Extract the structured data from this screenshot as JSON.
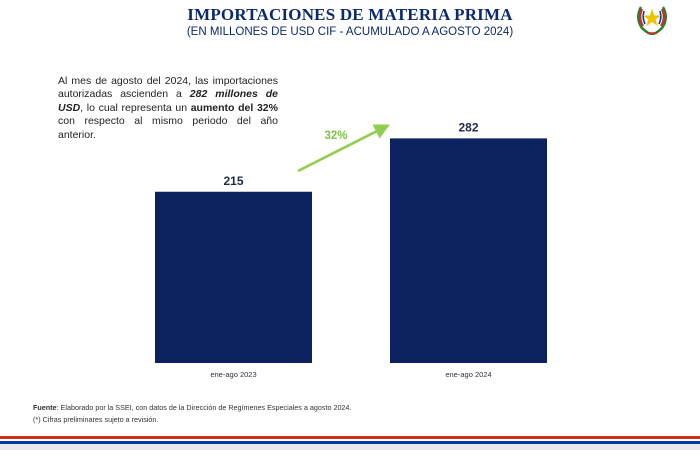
{
  "header": {
    "title": "IMPORTACIONES DE MATERIA PRIMA",
    "subtitle": "(EN MILLONES DE USD CIF - ACUMULADO A AGOSTO 2024)"
  },
  "note": {
    "part1": "Al mes de agosto del 2024, las importaciones autorizadas ascienden a ",
    "amount": "282 millones de USD",
    "part2": ", lo cual representa un ",
    "increase": "aumento del 32%",
    "part3": " con respecto al mismo periodo del año anterior."
  },
  "chart_data": {
    "type": "bar",
    "categories": [
      "ene-ago 2023",
      "ene-ago 2024"
    ],
    "values": [
      215,
      282
    ],
    "data_labels": [
      "215",
      "282"
    ],
    "growth_label": "32%",
    "ylim": [
      0,
      300
    ],
    "grid": false,
    "legend": "none",
    "colors": {
      "bar": "#0b2160",
      "arrow": "#8fce4e",
      "growth_text": "#7dc242"
    }
  },
  "footer": {
    "source_label": "Fuente",
    "source_text": ": Elaborado por la SSEI, con datos de la Dirección de Regímenes Especiales a agosto 2024.",
    "note": "(*) Cifras preliminares sujeto a revisión."
  },
  "colors": {
    "title": "#0b2a6b",
    "flag_red": "#d52b1e",
    "flag_blue": "#0038a8"
  },
  "icons": {
    "seal": "paraguay-seal-icon"
  }
}
